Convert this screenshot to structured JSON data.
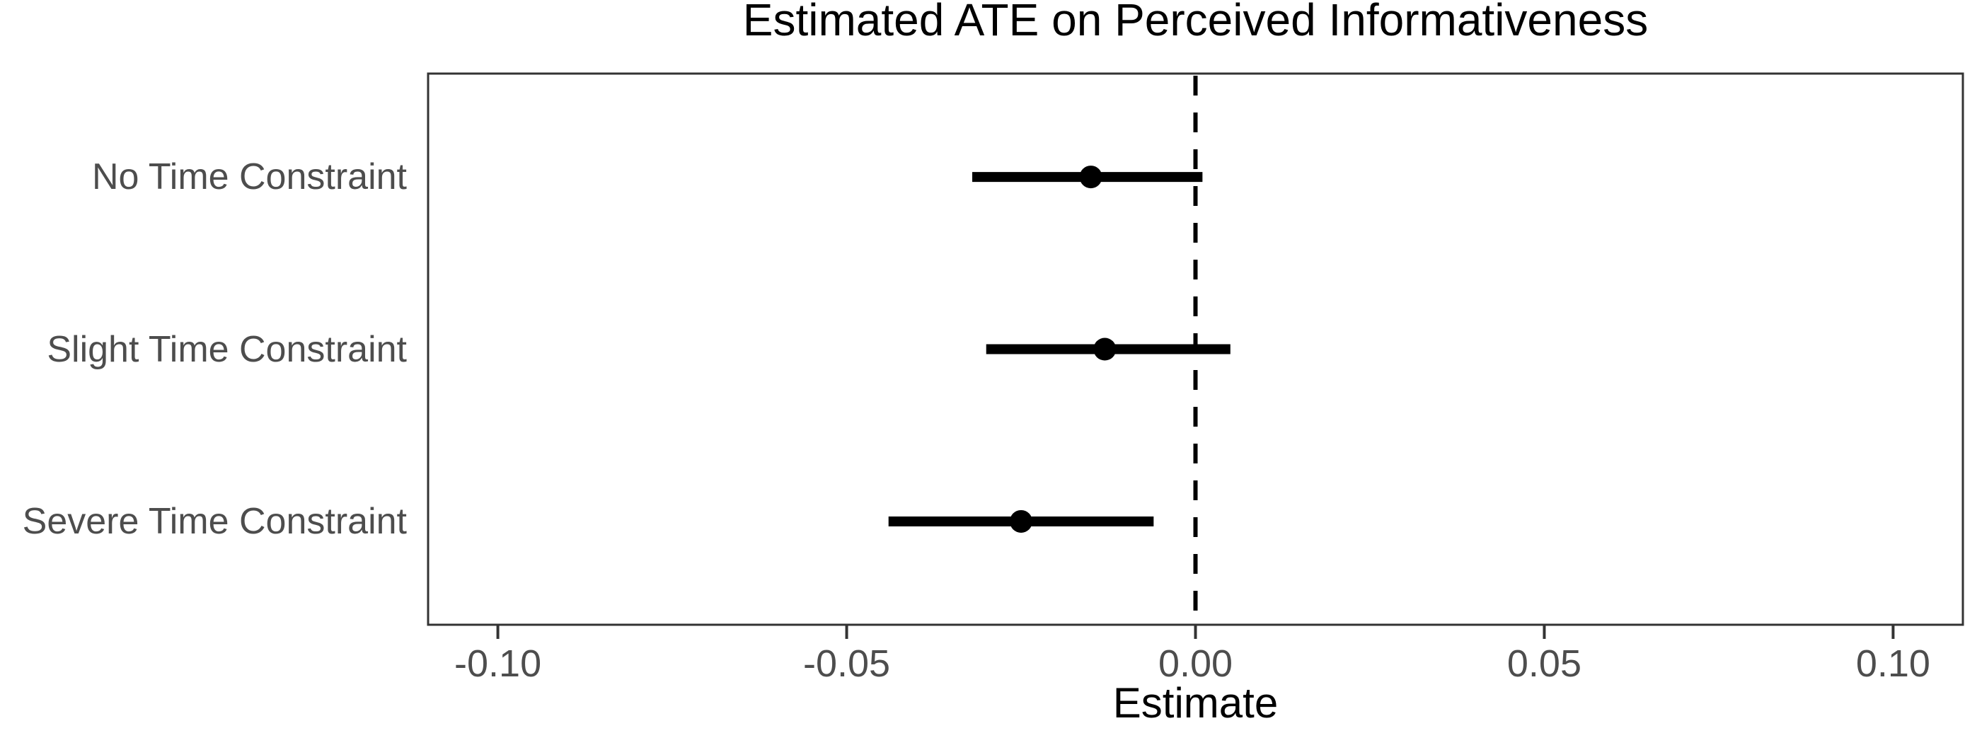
{
  "chart_data": {
    "type": "scatter",
    "subtype": "forest-plot-errorbar",
    "title": "Estimated ATE on Perceived Informativeness",
    "xlabel": "Estimate",
    "ylabel": "",
    "categories": [
      "No Time Constraint",
      "Slight Time Constraint",
      "Severe Time Constraint"
    ],
    "series": [
      {
        "name": "Estimated ATE",
        "estimates": [
          -0.015,
          -0.013,
          -0.025
        ],
        "ci_low": [
          -0.032,
          -0.03,
          -0.044
        ],
        "ci_high": [
          0.001,
          0.005,
          -0.006
        ]
      }
    ],
    "x_ticks": [
      -0.1,
      -0.05,
      0.0,
      0.05,
      0.1
    ],
    "x_tick_labels": [
      "-0.10",
      "-0.05",
      "0.00",
      "0.05",
      "0.10"
    ],
    "xlim": [
      -0.11,
      0.11
    ],
    "reference_line_x": 0,
    "reference_line_style": "dashed",
    "grid": false,
    "legend": "none",
    "colors": {
      "marker": "#000000",
      "reference_line": "#000000",
      "panel_border": "#333333",
      "tick_mark": "#333333",
      "axis_text": "#4D4D4D",
      "title_text": "#000000",
      "background": "#FFFFFF"
    }
  }
}
